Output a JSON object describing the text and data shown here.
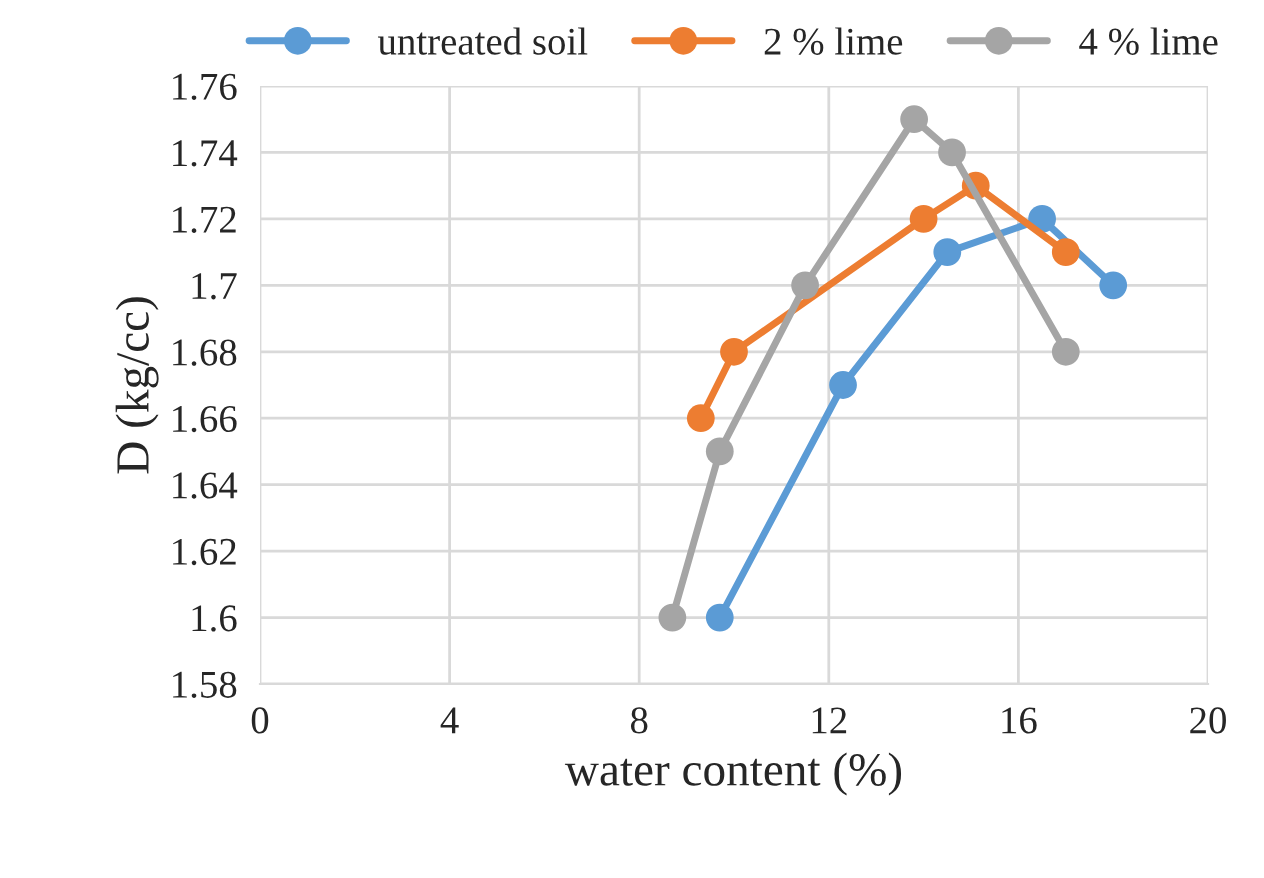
{
  "chart_data": {
    "type": "line",
    "xlabel": "water content (%)",
    "ylabel": "D (kg/cc)",
    "series": [
      {
        "name": "untreated soil",
        "color": "#5b9bd5",
        "x": [
          9.7,
          12.3,
          14.5,
          16.5,
          18
        ],
        "values": [
          1.6,
          1.67,
          1.71,
          1.72,
          1.7
        ]
      },
      {
        "name": "2 % lime",
        "color": "#ed7d31",
        "x": [
          9.3,
          10,
          14,
          15.1,
          17
        ],
        "values": [
          1.66,
          1.68,
          1.72,
          1.73,
          1.71
        ]
      },
      {
        "name": "4 % lime",
        "color": "#a5a5a5",
        "x": [
          8.7,
          9.7,
          11.5,
          13.8,
          14.6,
          17
        ],
        "values": [
          1.6,
          1.65,
          1.7,
          1.75,
          1.74,
          1.68
        ]
      }
    ],
    "xlim": [
      0,
      20
    ],
    "xticks": [
      0,
      4,
      8,
      12,
      16,
      20
    ],
    "ylim": [
      1.58,
      1.76
    ],
    "yticks": [
      1.58,
      1.6,
      1.62,
      1.64,
      1.66,
      1.68,
      1.7,
      1.72,
      1.74,
      1.76
    ],
    "grid": true,
    "legend": "top",
    "marker": "circle",
    "line_style": "solid"
  }
}
